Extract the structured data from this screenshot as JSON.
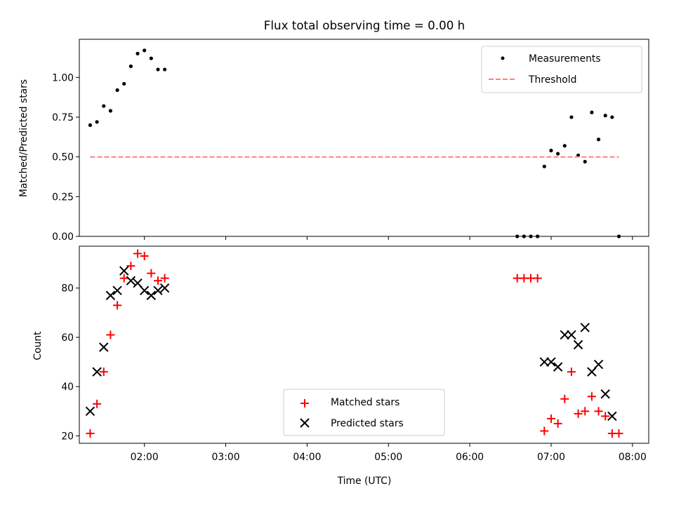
{
  "chart_data": [
    {
      "type": "scatter",
      "title": "Flux total observing time = 0.00 h",
      "xlabel": "",
      "ylabel": "Matched/Predicted stars",
      "ylim": [
        0,
        1.24
      ],
      "yticks": [
        "0.00",
        "0.25",
        "0.50",
        "0.75",
        "1.00"
      ],
      "ytick_values": [
        0,
        0.25,
        0.5,
        0.75,
        1.0
      ],
      "xlim": [
        "01:12",
        "08:12"
      ],
      "legend": "top-right",
      "series": [
        {
          "name": "Measurements",
          "color": "#000000",
          "marker": "dot",
          "points": [
            {
              "x": "01:20",
              "y": 0.7
            },
            {
              "x": "01:25",
              "y": 0.72
            },
            {
              "x": "01:30",
              "y": 0.82
            },
            {
              "x": "01:35",
              "y": 0.79
            },
            {
              "x": "01:40",
              "y": 0.92
            },
            {
              "x": "01:45",
              "y": 0.96
            },
            {
              "x": "01:50",
              "y": 1.07
            },
            {
              "x": "01:55",
              "y": 1.15
            },
            {
              "x": "02:00",
              "y": 1.17
            },
            {
              "x": "02:05",
              "y": 1.12
            },
            {
              "x": "02:10",
              "y": 1.05
            },
            {
              "x": "02:15",
              "y": 1.05
            },
            {
              "x": "06:35",
              "y": 0.0
            },
            {
              "x": "06:40",
              "y": 0.0
            },
            {
              "x": "06:45",
              "y": 0.0
            },
            {
              "x": "06:50",
              "y": 0.0
            },
            {
              "x": "06:55",
              "y": 0.44
            },
            {
              "x": "07:00",
              "y": 0.54
            },
            {
              "x": "07:05",
              "y": 0.52
            },
            {
              "x": "07:10",
              "y": 0.57
            },
            {
              "x": "07:15",
              "y": 0.75
            },
            {
              "x": "07:20",
              "y": 0.51
            },
            {
              "x": "07:25",
              "y": 0.47
            },
            {
              "x": "07:30",
              "y": 0.78
            },
            {
              "x": "07:35",
              "y": 0.61
            },
            {
              "x": "07:40",
              "y": 0.76
            },
            {
              "x": "07:45",
              "y": 0.75
            },
            {
              "x": "07:50",
              "y": 0.0
            }
          ]
        },
        {
          "name": "Threshold",
          "color": "#ff8080",
          "line": "dashed",
          "x": [
            "01:20",
            "07:50"
          ],
          "y": [
            0.5,
            0.5
          ]
        }
      ]
    },
    {
      "type": "scatter",
      "title": "",
      "xlabel": "Time (UTC)",
      "ylabel": "Count",
      "ylim": [
        17,
        97
      ],
      "yticks": [
        "20",
        "40",
        "60",
        "80"
      ],
      "ytick_values": [
        20,
        40,
        60,
        80
      ],
      "xlim": [
        "01:12",
        "08:12"
      ],
      "xticks": [
        "02:00",
        "03:00",
        "04:00",
        "05:00",
        "06:00",
        "07:00",
        "08:00"
      ],
      "legend": "lower-center",
      "series": [
        {
          "name": "Matched stars",
          "color": "#ff0000",
          "marker": "plus",
          "points": [
            {
              "x": "01:20",
              "y": 21
            },
            {
              "x": "01:25",
              "y": 33
            },
            {
              "x": "01:30",
              "y": 46
            },
            {
              "x": "01:35",
              "y": 61
            },
            {
              "x": "01:40",
              "y": 73
            },
            {
              "x": "01:45",
              "y": 84
            },
            {
              "x": "01:50",
              "y": 89
            },
            {
              "x": "01:55",
              "y": 94
            },
            {
              "x": "02:00",
              "y": 93
            },
            {
              "x": "02:05",
              "y": 86
            },
            {
              "x": "02:10",
              "y": 83
            },
            {
              "x": "02:15",
              "y": 84
            },
            {
              "x": "06:35",
              "y": 84
            },
            {
              "x": "06:40",
              "y": 84
            },
            {
              "x": "06:45",
              "y": 84
            },
            {
              "x": "06:50",
              "y": 84
            },
            {
              "x": "06:55",
              "y": 22
            },
            {
              "x": "07:00",
              "y": 27
            },
            {
              "x": "07:05",
              "y": 25
            },
            {
              "x": "07:10",
              "y": 35
            },
            {
              "x": "07:15",
              "y": 46
            },
            {
              "x": "07:20",
              "y": 29
            },
            {
              "x": "07:25",
              "y": 30
            },
            {
              "x": "07:30",
              "y": 36
            },
            {
              "x": "07:35",
              "y": 30
            },
            {
              "x": "07:40",
              "y": 28
            },
            {
              "x": "07:45",
              "y": 21
            },
            {
              "x": "07:50",
              "y": 21
            }
          ]
        },
        {
          "name": "Predicted stars",
          "color": "#000000",
          "marker": "x",
          "points": [
            {
              "x": "01:20",
              "y": 30
            },
            {
              "x": "01:25",
              "y": 46
            },
            {
              "x": "01:30",
              "y": 56
            },
            {
              "x": "01:35",
              "y": 77
            },
            {
              "x": "01:40",
              "y": 79
            },
            {
              "x": "01:45",
              "y": 87
            },
            {
              "x": "01:50",
              "y": 83
            },
            {
              "x": "01:55",
              "y": 82
            },
            {
              "x": "02:00",
              "y": 79
            },
            {
              "x": "02:05",
              "y": 77
            },
            {
              "x": "02:10",
              "y": 79
            },
            {
              "x": "02:15",
              "y": 80
            },
            {
              "x": "06:55",
              "y": 50
            },
            {
              "x": "07:00",
              "y": 50
            },
            {
              "x": "07:05",
              "y": 48
            },
            {
              "x": "07:10",
              "y": 61
            },
            {
              "x": "07:15",
              "y": 61
            },
            {
              "x": "07:20",
              "y": 57
            },
            {
              "x": "07:25",
              "y": 64
            },
            {
              "x": "07:30",
              "y": 46
            },
            {
              "x": "07:35",
              "y": 49
            },
            {
              "x": "07:40",
              "y": 37
            },
            {
              "x": "07:45",
              "y": 28
            }
          ]
        }
      ]
    }
  ]
}
